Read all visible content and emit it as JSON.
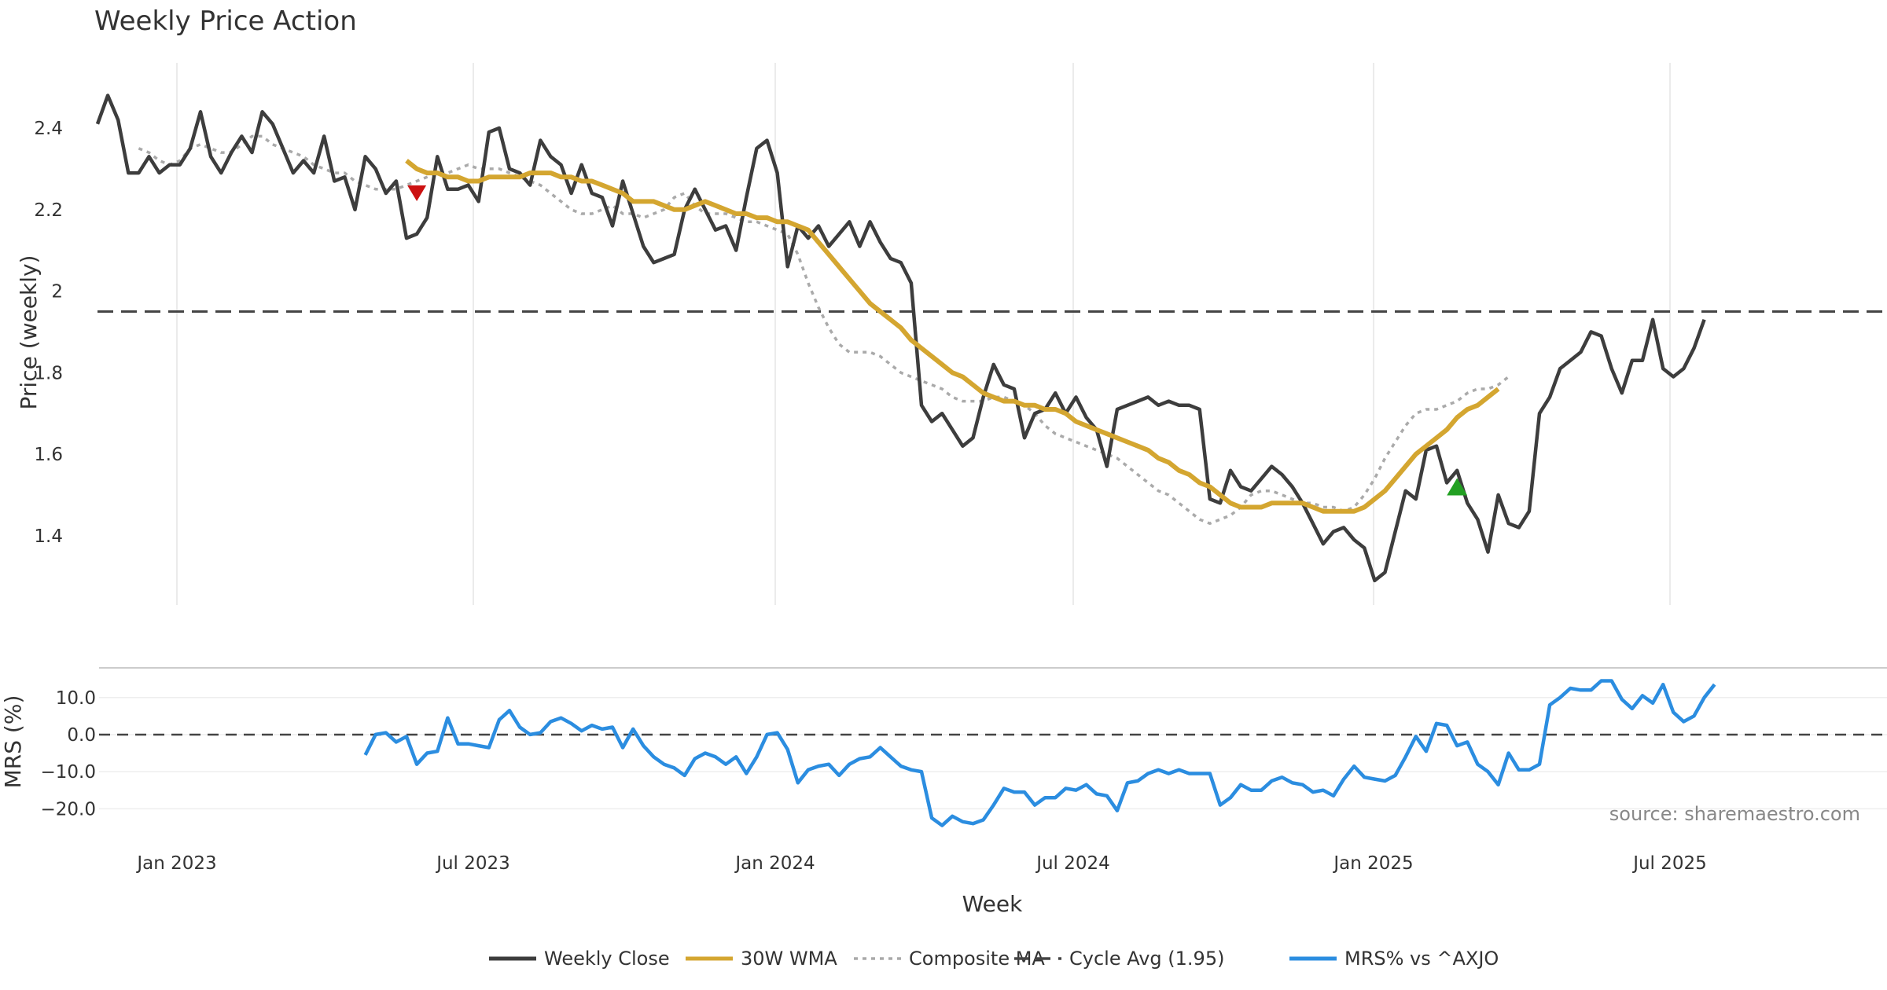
{
  "chart_data": {
    "type": "line",
    "title": "Weekly Price Action",
    "xlabel": "Week",
    "x_ticks": [
      "Jan 2023",
      "Jul 2023",
      "Jan 2024",
      "Jul 2024",
      "Jan 2025",
      "Jul 2025"
    ],
    "source_label": "source: sharemaestro.com",
    "price_panel": {
      "ylabel": "Price (weekly)",
      "ylim": [
        1.23,
        2.56
      ],
      "y_ticks": [
        "1.4",
        "1.6",
        "1.8",
        "2",
        "2.2",
        "2.4"
      ],
      "y_tick_values": [
        1.4,
        1.6,
        1.8,
        2.0,
        2.2,
        2.4
      ],
      "cycle_avg": 1.95,
      "weekly_close": [
        2.41,
        2.48,
        2.42,
        2.29,
        2.29,
        2.33,
        2.29,
        2.31,
        2.31,
        2.35,
        2.44,
        2.33,
        2.29,
        2.34,
        2.38,
        2.34,
        2.44,
        2.41,
        2.35,
        2.29,
        2.32,
        2.29,
        2.38,
        2.27,
        2.28,
        2.2,
        2.33,
        2.3,
        2.24,
        2.27,
        2.13,
        2.14,
        2.18,
        2.33,
        2.25,
        2.25,
        2.26,
        2.22,
        2.39,
        2.4,
        2.3,
        2.29,
        2.26,
        2.37,
        2.33,
        2.31,
        2.24,
        2.31,
        2.24,
        2.23,
        2.16,
        2.27,
        2.19,
        2.11,
        2.07,
        2.08,
        2.09,
        2.2,
        2.25,
        2.2,
        2.15,
        2.16,
        2.1,
        2.23,
        2.35,
        2.37,
        2.29,
        2.06,
        2.16,
        2.13,
        2.16,
        2.11,
        2.14,
        2.17,
        2.11,
        2.17,
        2.12,
        2.08,
        2.07,
        2.02,
        1.72,
        1.68,
        1.7,
        1.66,
        1.62,
        1.64,
        1.74,
        1.82,
        1.77,
        1.76,
        1.64,
        1.7,
        1.71,
        1.75,
        1.7,
        1.74,
        1.69,
        1.66,
        1.57,
        1.71,
        1.72,
        1.73,
        1.74,
        1.72,
        1.73,
        1.72,
        1.72,
        1.71,
        1.49,
        1.48,
        1.56,
        1.52,
        1.51,
        1.54,
        1.57,
        1.55,
        1.52,
        1.48,
        1.43,
        1.38,
        1.41,
        1.42,
        1.39,
        1.37,
        1.29,
        1.31,
        1.41,
        1.51,
        1.49,
        1.61,
        1.62,
        1.53,
        1.56,
        1.48,
        1.44,
        1.36,
        1.5,
        1.43,
        1.42,
        1.46,
        1.7,
        1.74,
        1.81,
        1.83,
        1.85,
        1.9,
        1.89,
        1.81,
        1.75,
        1.83,
        1.83,
        1.93,
        1.81,
        1.79,
        1.81,
        1.86,
        1.93
      ],
      "wma_30w": [
        2.32,
        2.3,
        2.29,
        2.29,
        2.28,
        2.28,
        2.27,
        2.27,
        2.28,
        2.28,
        2.28,
        2.28,
        2.29,
        2.29,
        2.29,
        2.28,
        2.28,
        2.27,
        2.27,
        2.26,
        2.25,
        2.24,
        2.22,
        2.22,
        2.22,
        2.21,
        2.2,
        2.2,
        2.21,
        2.22,
        2.21,
        2.2,
        2.19,
        2.19,
        2.18,
        2.18,
        2.17,
        2.17,
        2.16,
        2.15,
        2.12,
        2.09,
        2.06,
        2.03,
        2.0,
        1.97,
        1.95,
        1.93,
        1.91,
        1.88,
        1.86,
        1.84,
        1.82,
        1.8,
        1.79,
        1.77,
        1.75,
        1.74,
        1.73,
        1.73,
        1.72,
        1.72,
        1.71,
        1.71,
        1.7,
        1.68,
        1.67,
        1.66,
        1.65,
        1.64,
        1.63,
        1.62,
        1.61,
        1.59,
        1.58,
        1.56,
        1.55,
        1.53,
        1.52,
        1.5,
        1.48,
        1.47,
        1.47,
        1.47,
        1.48,
        1.48,
        1.48,
        1.48,
        1.47,
        1.46,
        1.46,
        1.46,
        1.46,
        1.47,
        1.49,
        1.51,
        1.54,
        1.57,
        1.6,
        1.62,
        1.64,
        1.66,
        1.69,
        1.71,
        1.72,
        1.74,
        1.76
      ],
      "composite_ma": [
        2.35,
        2.34,
        2.32,
        2.31,
        2.32,
        2.35,
        2.36,
        2.35,
        2.34,
        2.34,
        2.36,
        2.38,
        2.38,
        2.36,
        2.35,
        2.34,
        2.33,
        2.31,
        2.3,
        2.29,
        2.29,
        2.27,
        2.26,
        2.25,
        2.25,
        2.25,
        2.26,
        2.27,
        2.28,
        2.29,
        2.29,
        2.3,
        2.31,
        2.3,
        2.3,
        2.3,
        2.29,
        2.28,
        2.27,
        2.26,
        2.24,
        2.22,
        2.2,
        2.19,
        2.19,
        2.2,
        2.21,
        2.19,
        2.19,
        2.18,
        2.19,
        2.2,
        2.23,
        2.24,
        2.21,
        2.19,
        2.19,
        2.19,
        2.18,
        2.17,
        2.17,
        2.16,
        2.15,
        2.14,
        2.09,
        2.02,
        1.96,
        1.91,
        1.87,
        1.85,
        1.85,
        1.85,
        1.84,
        1.82,
        1.8,
        1.79,
        1.78,
        1.77,
        1.76,
        1.74,
        1.73,
        1.73,
        1.73,
        1.74,
        1.74,
        1.73,
        1.72,
        1.7,
        1.67,
        1.65,
        1.64,
        1.63,
        1.62,
        1.61,
        1.6,
        1.59,
        1.57,
        1.55,
        1.53,
        1.51,
        1.5,
        1.48,
        1.46,
        1.44,
        1.43,
        1.44,
        1.45,
        1.47,
        1.5,
        1.51,
        1.51,
        1.5,
        1.49,
        1.48,
        1.48,
        1.47,
        1.47,
        1.46,
        1.47,
        1.5,
        1.54,
        1.59,
        1.63,
        1.67,
        1.7,
        1.71,
        1.71,
        1.72,
        1.73,
        1.75,
        1.76,
        1.76,
        1.77,
        1.79
      ],
      "composite_start_index": 4,
      "wma_start_index": 30,
      "signals": [
        {
          "type": "sell",
          "week_index": 31,
          "price": 2.24,
          "color": "#cc1111"
        },
        {
          "type": "buy",
          "week_index": 132,
          "price": 1.52,
          "color": "#22a022"
        }
      ]
    },
    "mrs_panel": {
      "ylabel": "MRS (%)",
      "ylim": [
        -26.5,
        18
      ],
      "y_ticks": [
        "10.0",
        "0.0",
        "−10.0",
        "−20.0"
      ],
      "y_tick_values": [
        10,
        0,
        -10,
        -20
      ],
      "start_index": 26,
      "values": [
        -5.5,
        0,
        0.5,
        -2,
        -0.5,
        -8,
        -5,
        -4.5,
        4.5,
        -2.5,
        -2.5,
        -3,
        -3.5,
        4,
        6.5,
        2,
        0,
        0.5,
        3.5,
        4.5,
        3,
        1,
        2.5,
        1.5,
        2,
        -3.5,
        1.5,
        -3,
        -6,
        -8,
        -9,
        -11,
        -6.5,
        -5,
        -6,
        -8,
        -6,
        -10.5,
        -6,
        0,
        0.5,
        -4,
        -13,
        -9.5,
        -8.5,
        -8,
        -11,
        -8,
        -6.5,
        -6,
        -3.5,
        -6,
        -8.5,
        -9.5,
        -10,
        -22.5,
        -24.5,
        -22,
        -23.5,
        -24,
        -23,
        -19,
        -14.5,
        -15.5,
        -15.5,
        -19,
        -17,
        -17,
        -14.5,
        -15,
        -13.5,
        -16,
        -16.5,
        -20.5,
        -13,
        -12.5,
        -10.5,
        -9.5,
        -10.5,
        -9.5,
        -10.5,
        -10.5,
        -10.5,
        -19,
        -17,
        -13.5,
        -15,
        -15,
        -12.5,
        -11.5,
        -13,
        -13.5,
        -15.5,
        -15,
        -16.5,
        -12,
        -8.5,
        -11.5,
        -12,
        -12.5,
        -11,
        -6,
        -0.5,
        -4.5,
        3,
        2.5,
        -3,
        -2,
        -8,
        -10,
        -13.5,
        -5,
        -9.5,
        -9.5,
        -8,
        8,
        10,
        12.5,
        12,
        12,
        14.5,
        14.5,
        9.5,
        7,
        10.5,
        8.5,
        13.5,
        6,
        3.5,
        5,
        10,
        13.5
      ]
    },
    "legend": [
      {
        "label": "Weekly Close",
        "color": "#3d3d3d",
        "style": "solid"
      },
      {
        "label": "30W WMA",
        "color": "#d4a630",
        "style": "solid"
      },
      {
        "label": "Composite MA",
        "color": "#aaaaaa",
        "style": "dotted"
      },
      {
        "label": "Cycle Avg (1.95)",
        "color": "#444444",
        "style": "dashed"
      },
      {
        "label": "MRS% vs ^AXJO",
        "color": "#2b8de0",
        "style": "solid"
      }
    ]
  }
}
